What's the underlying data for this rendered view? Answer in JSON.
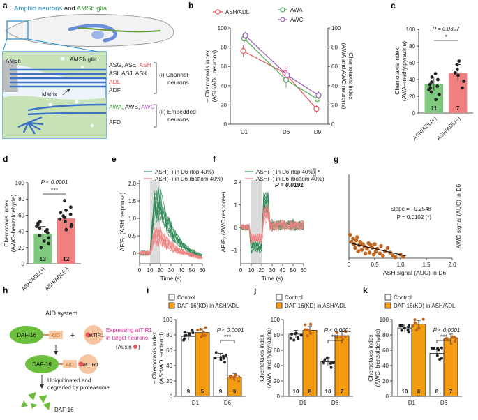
{
  "figure": {
    "panel_labels": [
      "a",
      "b",
      "c",
      "d",
      "e",
      "f",
      "g",
      "h",
      "i",
      "j",
      "k"
    ],
    "colors": {
      "green": "#4caf50",
      "red": "#e8545a",
      "purple": "#9b59b6",
      "salmon": "#f08080",
      "darkgreen": "#2e8b57",
      "orange": "#f39c12",
      "brown": "#c0651f",
      "blue": "#4a90d9",
      "gray": "#888888"
    }
  },
  "panel_a": {
    "title_parts": [
      "Amphid neurons",
      " and ",
      "AMSh glia"
    ],
    "amso": "AMSo",
    "amsh": "AMSh glia",
    "matrix": "Matrix",
    "channel_rows": [
      {
        "parts": [
          "ASG, ASE, ",
          "ASH"
        ]
      },
      {
        "parts": [
          "ASI, ASJ, ASK",
          ""
        ]
      },
      {
        "parts": [
          "ADL",
          ""
        ]
      },
      {
        "parts": [
          "ADF",
          ""
        ]
      }
    ],
    "channel_label_1": "(i) Channel",
    "channel_label_2": "neurons",
    "embedded_row_parts": [
      "AWA",
      ", AWB, ",
      "AWC"
    ],
    "afd": "AFD",
    "embedded_label_1": "(ii) Embedded",
    "embedded_label_2": "neurons"
  },
  "chart_data": [
    {
      "panel": "b",
      "type": "line",
      "categories": [
        "D1",
        "D6",
        "D9"
      ],
      "series": [
        {
          "name": "ASH/ADL",
          "values": [
            76,
            53,
            16
          ],
          "errors": [
            6,
            8,
            4
          ],
          "color": "#e8545a",
          "axis": "left"
        },
        {
          "name": "AWA",
          "values": [
            89,
            46,
            26
          ],
          "errors": [
            4,
            8,
            3
          ],
          "color": "#4caf50",
          "axis": "right"
        },
        {
          "name": "AWC",
          "values": [
            92,
            51,
            30
          ],
          "errors": [
            4,
            9,
            4
          ],
          "color": "#9b59b6",
          "axis": "right"
        }
      ],
      "ylabel_left": [
        "– Chemotaxis index",
        "(ASH/ADL neurons)"
      ],
      "ylabel_right": [
        "Chemotaxis index",
        "(AWA and AWC neurons)"
      ],
      "ylim": [
        0,
        100
      ],
      "yticks": [
        "0",
        "20",
        "40",
        "60",
        "80",
        "100"
      ]
    },
    {
      "panel": "c",
      "type": "bar",
      "categories": [
        "ASH/ADL(+)",
        "ASH/ADL(–)"
      ],
      "values": [
        35,
        48
      ],
      "errors": [
        8,
        10
      ],
      "counts": [
        "11",
        "7"
      ],
      "points": [
        [
          16,
          22,
          25,
          28,
          30,
          32,
          34,
          37,
          40,
          43,
          47
        ],
        [
          30,
          38,
          45,
          48,
          52,
          58,
          62
        ]
      ],
      "colors": [
        "#7ec97e",
        "#f08080"
      ],
      "ylabel": [
        "Chemotaxis index",
        "(AWA–methylpyrazine)"
      ],
      "ylim": [
        0,
        100
      ],
      "yticks": [
        "0",
        "20",
        "40",
        "60",
        "80",
        "100"
      ],
      "pvalue": "P = 0.0307",
      "sig": "*"
    },
    {
      "panel": "d",
      "type": "bar",
      "categories": [
        "ASH/ADL(+)",
        "ASH/ADL(–)"
      ],
      "values": [
        37,
        56
      ],
      "errors": [
        9,
        9
      ],
      "counts": [
        "13",
        "12"
      ],
      "points": [
        [
          20,
          25,
          28,
          32,
          35,
          38,
          40,
          42,
          44,
          46,
          48,
          50,
          52
        ],
        [
          42,
          46,
          48,
          52,
          55,
          57,
          59,
          61,
          63,
          66,
          70,
          78
        ]
      ],
      "colors": [
        "#7ec97e",
        "#f08080"
      ],
      "ylabel": [
        "Chemotaxis index",
        "(AWC–benzaldehyde)"
      ],
      "ylim": [
        0,
        100
      ],
      "yticks": [
        "0",
        "20",
        "40",
        "60",
        "80",
        "100"
      ],
      "pvalue": "P < 0.0001",
      "sig": "***"
    },
    {
      "panel": "e",
      "type": "line",
      "legend": [
        "ASH(+) in D6 (top 40%)",
        "ASH(–) in D6 (bottom 40%)"
      ],
      "ylabel": "ΔF/F₀ (ASH response)",
      "xlabel": "Time (s)",
      "xticks": [
        "0",
        "10",
        "20",
        "30",
        "40",
        "50",
        "60"
      ],
      "yticks": [
        "0",
        "0.5",
        "1.0",
        "1.5",
        "2.0"
      ],
      "xlim": [
        0,
        60
      ],
      "ylim": [
        -0.3,
        2.1
      ],
      "stimulus": [
        10,
        20
      ]
    },
    {
      "panel": "f",
      "type": "line",
      "legend": [
        "ASH(+) in D6 (top 40%)",
        "ASH(–) in D6 (bottom 40%)"
      ],
      "ylabel": "ΔF/F₀ (AWC response)",
      "xlabel": "Time (s)",
      "xticks": [
        "0",
        "10",
        "20",
        "30",
        "40",
        "50",
        "60"
      ],
      "yticks": [
        "–1",
        "0",
        "1",
        "2"
      ],
      "xlim": [
        0,
        60
      ],
      "ylim": [
        -1.6,
        2.1
      ],
      "stimulus": [
        10,
        20
      ],
      "pvalue": "P = 0.0191",
      "sig": "*"
    },
    {
      "panel": "g",
      "type": "scatter",
      "xlabel": "ASH signal (AUC) in D6",
      "ylabel": "AWC signal (AUC) in D6",
      "xticks": [
        "0",
        "0.5",
        "1.0",
        "1.5",
        "2.0"
      ],
      "xlim": [
        0,
        2
      ],
      "ylim": [
        0,
        1.8
      ],
      "slope": "Slope = –0.2548",
      "pvalue": "P = 0.0102 (*)",
      "x": [
        0.02,
        0.05,
        0.08,
        0.1,
        0.12,
        0.14,
        0.16,
        0.18,
        0.2,
        0.22,
        0.25,
        0.27,
        0.3,
        0.32,
        0.35,
        0.38,
        0.4,
        0.42,
        0.45,
        0.48,
        0.5,
        0.52,
        0.55,
        0.6,
        0.62,
        0.66,
        0.7,
        0.75,
        0.8,
        0.85,
        0.9,
        1.0,
        1.05
      ],
      "y": [
        0.5,
        0.35,
        0.42,
        0.3,
        0.22,
        0.38,
        0.45,
        0.15,
        0.28,
        0.35,
        0.18,
        0.3,
        0.25,
        0.1,
        0.2,
        0.32,
        0.12,
        0.28,
        0.22,
        0.08,
        0.3,
        0.14,
        0.2,
        0.1,
        0.26,
        0.05,
        0.15,
        0.22,
        0.12,
        0.06,
        0.02,
        0.08,
        0.03
      ]
    },
    {
      "panel": "i",
      "type": "bar",
      "categories": [
        "D1",
        "D6"
      ],
      "series": [
        {
          "name": "Control",
          "values": [
            78,
            51
          ]
        },
        {
          "name": "DAF-16(KD) in ASH/ADL",
          "values": [
            83,
            25
          ]
        }
      ],
      "counts": [
        [
          "9",
          "5"
        ],
        [
          "9",
          "9"
        ]
      ],
      "ylabel": [
        "– Chemotaxis index",
        "(ASH/ADL–octanol)"
      ],
      "ylim": [
        0,
        100
      ],
      "yticks": [
        "0",
        "20",
        "40",
        "60",
        "80",
        "100"
      ],
      "pvalue": "P < 0.0001",
      "sig": "***"
    },
    {
      "panel": "j",
      "type": "bar",
      "categories": [
        "D1",
        "D6"
      ],
      "series": [
        {
          "name": "Control",
          "values": [
            81,
            45
          ]
        },
        {
          "name": "DAF-16(KD) in ASH/ADL",
          "values": [
            86,
            79
          ]
        }
      ],
      "counts": [
        [
          "10",
          "8"
        ],
        [
          "10",
          "7"
        ]
      ],
      "ylabel": [
        "Chemotaxis index",
        "(AWA–methylpyrazine)"
      ],
      "ylim": [
        0,
        100
      ],
      "yticks": [
        "0",
        "20",
        "40",
        "60",
        "80",
        "100"
      ],
      "pvalue": "P < 0.0001",
      "sig": "***"
    },
    {
      "panel": "k",
      "type": "bar",
      "categories": [
        "D1",
        "D6"
      ],
      "series": [
        {
          "name": "Control",
          "values": [
            89,
            56
          ]
        },
        {
          "name": "DAF-16(KD) in ASH/ADL",
          "values": [
            94,
            76
          ]
        }
      ],
      "counts": [
        [
          "10",
          "8"
        ],
        [
          "8",
          "7"
        ]
      ],
      "ylabel": [
        "Chemotaxis index",
        "(AWC–benzaldehyde)"
      ],
      "ylim": [
        0,
        100
      ],
      "yticks": [
        "0",
        "20",
        "40",
        "60",
        "80",
        "100"
      ],
      "pvalue": "P < 0.0001",
      "sig": "***"
    }
  ],
  "panel_h": {
    "title": "AID system",
    "daf16": "DAF-16",
    "aid": "AID",
    "attir1": "atTIR1",
    "plus": "+",
    "expressing_1": "Expressing atTIR1",
    "expressing_2": "in target neurons",
    "auxin": "(Auxin",
    "auxin_close": ")",
    "ubiq_1": "Ubiquitinated and",
    "ubiq_2": "degraded by proteasome",
    "bottom": "DAF-16"
  }
}
